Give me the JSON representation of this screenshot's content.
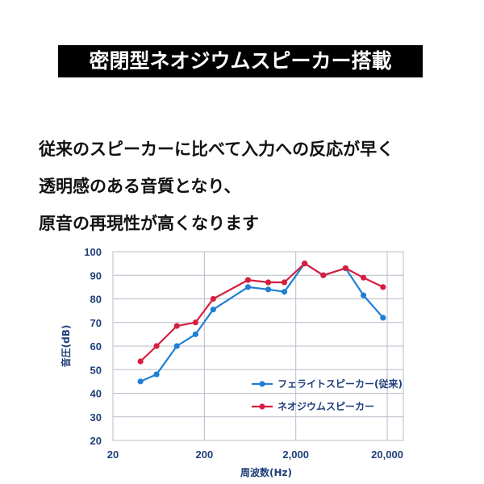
{
  "title": "密閉型ネオジウムスピーカー搭載",
  "description": [
    "従来のスピーカーに比べて入力への反応が早く",
    "透明感のある音質となり、",
    "原音の再現性が高くなります"
  ],
  "colors": {
    "series_blue": "#1f7fd4",
    "series_red": "#d61f3f",
    "axis_text": "#1f3f7a",
    "grid": "#b8bcc8"
  },
  "chart_data": {
    "type": "line",
    "xscale": "log",
    "xlabel": "周波数(Hz)",
    "ylabel": "音圧(dB)",
    "xlim": [
      20,
      30000
    ],
    "ylim": [
      20,
      100
    ],
    "x_ticks": [
      20,
      200,
      2000,
      20000
    ],
    "x_tick_labels": [
      "20",
      "200",
      "2,000",
      "20,000"
    ],
    "y_ticks": [
      20,
      30,
      40,
      50,
      60,
      70,
      80,
      90,
      100
    ],
    "grid": true,
    "legend_position": "lower-right",
    "series": [
      {
        "name": "フェライトスピーカー(従来)",
        "color": "#1f7fd4",
        "x": [
          40,
          60,
          100,
          160,
          250,
          600,
          1000,
          1500,
          2500,
          4000,
          7000,
          11000,
          18000
        ],
        "y": [
          45,
          48,
          60,
          65,
          75.5,
          85,
          84,
          83,
          95,
          90,
          93,
          81.5,
          72
        ]
      },
      {
        "name": "ネオジウムスピーカー",
        "color": "#d61f3f",
        "x": [
          40,
          60,
          100,
          160,
          250,
          600,
          1000,
          1500,
          2500,
          4000,
          7000,
          11000,
          18000
        ],
        "y": [
          53.5,
          60,
          68.5,
          70,
          80,
          88,
          87,
          87,
          95,
          90,
          93,
          89,
          85
        ]
      }
    ]
  }
}
